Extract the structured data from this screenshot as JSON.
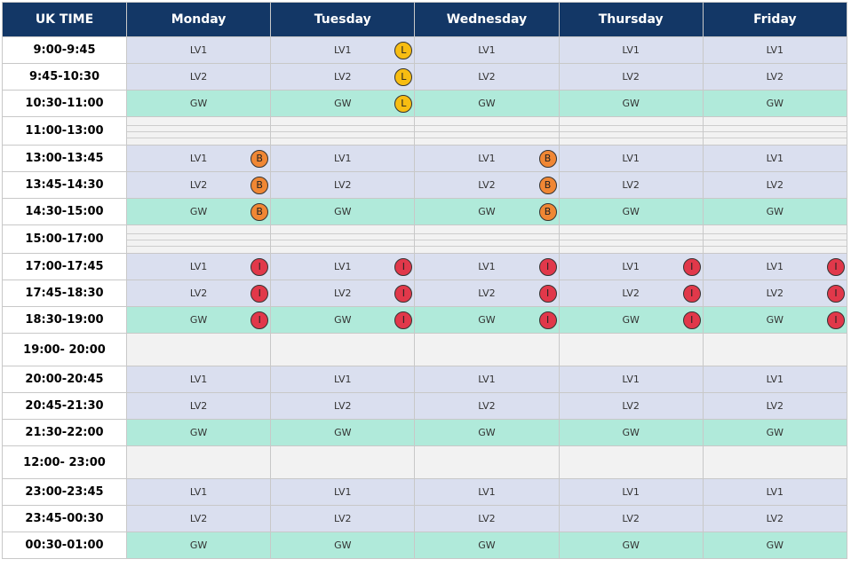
{
  "headers": [
    "UK TIME",
    "Monday",
    "Tuesday",
    "Wednesday",
    "Thursday",
    "Friday"
  ],
  "colors": {
    "header": "#133766",
    "lv": "#dadfef",
    "gw": "#b0eada",
    "break": "#f2f2f2",
    "badge_L": "#f7bd12",
    "badge_B": "#f08734",
    "badge_I": "#e1384a"
  },
  "rows": [
    {
      "time": "9:00-9:45",
      "cells": [
        "LV1",
        "LV1",
        "LV1",
        "LV1",
        "LV1"
      ],
      "badges": [
        "",
        "L",
        "",
        "",
        ""
      ]
    },
    {
      "time": "9:45-10:30",
      "cells": [
        "LV2",
        "LV2",
        "LV2",
        "LV2",
        "LV2"
      ],
      "badges": [
        "",
        "L",
        "",
        "",
        ""
      ]
    },
    {
      "time": "10:30-11:00",
      "cells": [
        "GW",
        "GW",
        "GW",
        "GW",
        "GW"
      ],
      "badges": [
        "",
        "L",
        "",
        "",
        ""
      ]
    },
    {
      "time": "11:00-13:00",
      "cells": [
        "",
        "",
        "",
        "",
        ""
      ],
      "badges": [
        "",
        "",
        "",
        "",
        ""
      ]
    },
    {
      "time": "13:00-13:45",
      "cells": [
        "LV1",
        "LV1",
        "LV1",
        "LV1",
        "LV1"
      ],
      "badges": [
        "B",
        "",
        "B",
        "",
        ""
      ]
    },
    {
      "time": "13:45-14:30",
      "cells": [
        "LV2",
        "LV2",
        "LV2",
        "LV2",
        "LV2"
      ],
      "badges": [
        "B",
        "",
        "B",
        "",
        ""
      ]
    },
    {
      "time": "14:30-15:00",
      "cells": [
        "GW",
        "GW",
        "GW",
        "GW",
        "GW"
      ],
      "badges": [
        "B",
        "",
        "B",
        "",
        ""
      ]
    },
    {
      "time": "15:00-17:00",
      "cells": [
        "",
        "",
        "",
        "",
        ""
      ],
      "badges": [
        "",
        "",
        "",
        "",
        ""
      ]
    },
    {
      "time": "17:00-17:45",
      "cells": [
        "LV1",
        "LV1",
        "LV1",
        "LV1",
        "LV1"
      ],
      "badges": [
        "I",
        "I",
        "I",
        "I",
        "I"
      ]
    },
    {
      "time": "17:45-18:30",
      "cells": [
        "LV2",
        "LV2",
        "LV2",
        "LV2",
        "LV2"
      ],
      "badges": [
        "I",
        "I",
        "I",
        "I",
        "I"
      ]
    },
    {
      "time": "18:30-19:00",
      "cells": [
        "GW",
        "GW",
        "GW",
        "GW",
        "GW"
      ],
      "badges": [
        "I",
        "I",
        "I",
        "I",
        "I"
      ]
    },
    {
      "time": "19:00- 20:00",
      "cells": [
        "",
        "",
        "",
        "",
        ""
      ],
      "badges": [
        "",
        "",
        "",
        "",
        ""
      ]
    },
    {
      "time": "20:00-20:45",
      "cells": [
        "LV1",
        "LV1",
        "LV1",
        "LV1",
        "LV1"
      ],
      "badges": [
        "",
        "",
        "",
        "",
        ""
      ]
    },
    {
      "time": "20:45-21:30",
      "cells": [
        "LV2",
        "LV2",
        "LV2",
        "LV2",
        "LV2"
      ],
      "badges": [
        "",
        "",
        "",
        "",
        ""
      ]
    },
    {
      "time": "21:30-22:00",
      "cells": [
        "GW",
        "GW",
        "GW",
        "GW",
        "GW"
      ],
      "badges": [
        "",
        "",
        "",
        "",
        ""
      ]
    },
    {
      "time": "12:00- 23:00",
      "cells": [
        "",
        "",
        "",
        "",
        ""
      ],
      "badges": [
        "",
        "",
        "",
        "",
        ""
      ]
    },
    {
      "time": "23:00-23:45",
      "cells": [
        "LV1",
        "LV1",
        "LV1",
        "LV1",
        "LV1"
      ],
      "badges": [
        "",
        "",
        "",
        "",
        ""
      ]
    },
    {
      "time": "23:45-00:30",
      "cells": [
        "LV2",
        "LV2",
        "LV2",
        "LV2",
        "LV2"
      ],
      "badges": [
        "",
        "",
        "",
        "",
        ""
      ]
    },
    {
      "time": "00:30-01:00",
      "cells": [
        "GW",
        "GW",
        "GW",
        "GW",
        "GW"
      ],
      "badges": [
        "",
        "",
        "",
        "",
        ""
      ]
    }
  ]
}
